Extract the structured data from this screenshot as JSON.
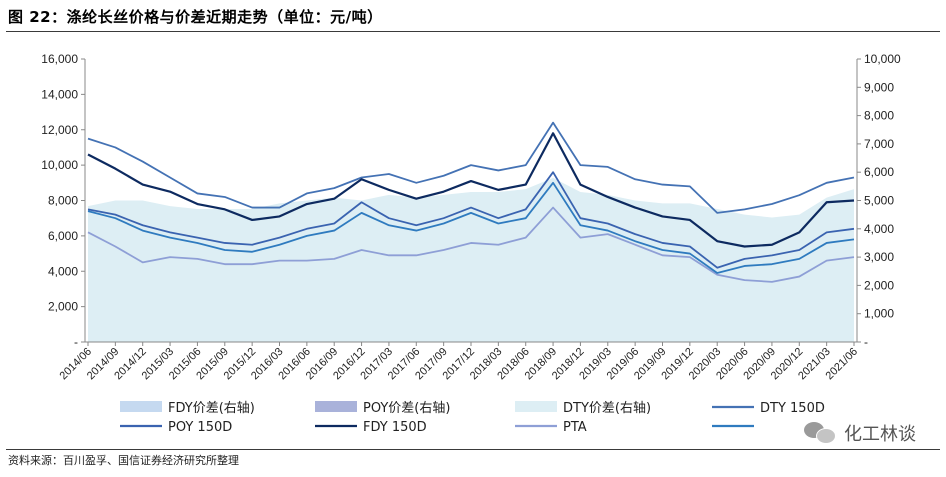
{
  "figure": {
    "title": "图 22：涤纶长丝价格与价差近期走势（单位：元/吨）",
    "source": "资料来源：百川盈孚、国信证券经济研究所整理"
  },
  "watermark": {
    "text": "化工林谈",
    "icon": "wechat-icon"
  },
  "chart_data": {
    "type": "line",
    "x_ticks": [
      "2014/06",
      "2014/09",
      "2014/12",
      "2015/03",
      "2015/06",
      "2015/09",
      "2015/12",
      "2016/03",
      "2016/06",
      "2016/09",
      "2016/12",
      "2017/03",
      "2017/06",
      "2017/09",
      "2017/12",
      "2018/03",
      "2018/06",
      "2018/09",
      "2018/12",
      "2019/03",
      "2019/06",
      "2019/09",
      "2019/12",
      "2020/03",
      "2020/06",
      "2020/09",
      "2020/12",
      "2021/03",
      "2021/06"
    ],
    "left_axis": {
      "ylim": [
        0,
        16000
      ],
      "ticks": [
        "-",
        "2,000",
        "4,000",
        "6,000",
        "8,000",
        "10,000",
        "12,000",
        "14,000",
        "16,000"
      ]
    },
    "right_axis": {
      "ylim": [
        0,
        10000
      ],
      "ticks": [
        "-",
        "1,000",
        "2,000",
        "3,000",
        "4,000",
        "5,000",
        "6,000",
        "7,000",
        "8,000",
        "9,000",
        "10,000"
      ]
    },
    "grid": false,
    "legend_position": "bottom",
    "series": [
      {
        "name": "FDY价差(右轴)",
        "axis": "right",
        "style": "area",
        "color": "#c5d9f0",
        "values": [
          2400,
          2300,
          2200,
          2100,
          2200,
          2100,
          2000,
          2100,
          2200,
          2300,
          2200,
          2500,
          2400,
          2300,
          2400,
          2500,
          2400,
          2700,
          2500,
          2600,
          2400,
          2300,
          2300,
          2100,
          2000,
          2000,
          2100,
          2300,
          2300
        ]
      },
      {
        "name": "POY价差(右轴)",
        "axis": "right",
        "style": "area",
        "color": "#a9b2da",
        "values": [
          2700,
          2900,
          2600,
          2400,
          2500,
          2400,
          2300,
          2500,
          2600,
          2700,
          2700,
          3000,
          2900,
          2800,
          2900,
          3100,
          3100,
          3600,
          3000,
          3000,
          2800,
          2600,
          2600,
          2300,
          1900,
          1900,
          2100,
          2600,
          2700
        ]
      },
      {
        "name": "DTY价差(右轴)",
        "axis": "right",
        "style": "area",
        "color": "#ddeef4",
        "values": [
          4800,
          5000,
          5000,
          4800,
          4700,
          4700,
          4700,
          4900,
          5000,
          5100,
          5000,
          5200,
          5100,
          5200,
          5300,
          5300,
          5400,
          5800,
          5300,
          5200,
          5000,
          4900,
          4900,
          4700,
          4500,
          4400,
          4500,
          5100,
          5400
        ]
      },
      {
        "name": "DTY 150D",
        "axis": "left",
        "style": "line",
        "color": "#4472b4",
        "values": [
          11500,
          11000,
          10200,
          9300,
          8400,
          8200,
          7600,
          7600,
          8400,
          8700,
          9300,
          9500,
          9000,
          9400,
          10000,
          9700,
          10000,
          12400,
          10000,
          9900,
          9200,
          8900,
          8800,
          7300,
          7500,
          7800,
          8300,
          9000,
          9300
        ]
      },
      {
        "name": "POY 150D",
        "axis": "left",
        "style": "line",
        "color": "#3a63b0",
        "values": [
          7500,
          7200,
          6600,
          6200,
          5900,
          5600,
          5500,
          5900,
          6400,
          6700,
          7900,
          7000,
          6600,
          7000,
          7600,
          7000,
          7500,
          9600,
          7000,
          6700,
          6100,
          5600,
          5400,
          4200,
          4700,
          4900,
          5200,
          6200,
          6400
        ]
      },
      {
        "name": "FDY 150D",
        "axis": "left",
        "style": "line",
        "color": "#0d2a60",
        "values": [
          10600,
          9800,
          8900,
          8500,
          7800,
          7500,
          6900,
          7100,
          7800,
          8100,
          9200,
          8600,
          8100,
          8500,
          9100,
          8600,
          8900,
          11800,
          8900,
          8200,
          7600,
          7100,
          6900,
          5700,
          5400,
          5500,
          6200,
          7900,
          8000
        ]
      },
      {
        "name": "PTA",
        "axis": "left",
        "style": "line",
        "color": "#8e9fd6",
        "values": [
          6200,
          5400,
          4500,
          4800,
          4700,
          4400,
          4400,
          4600,
          4600,
          4700,
          5200,
          4900,
          4900,
          5200,
          5600,
          5500,
          5900,
          7600,
          5900,
          6100,
          5500,
          4900,
          4800,
          3800,
          3500,
          3400,
          3700,
          4600,
          4800
        ]
      },
      {
        "name": "",
        "axis": "left",
        "style": "line",
        "color": "#2f7bbf",
        "values": [
          7400,
          7000,
          6300,
          5900,
          5600,
          5200,
          5100,
          5500,
          6000,
          6300,
          7300,
          6600,
          6300,
          6700,
          7300,
          6700,
          7000,
          9000,
          6600,
          6300,
          5700,
          5200,
          5000,
          3900,
          4300,
          4400,
          4700,
          5600,
          5800
        ]
      }
    ]
  }
}
